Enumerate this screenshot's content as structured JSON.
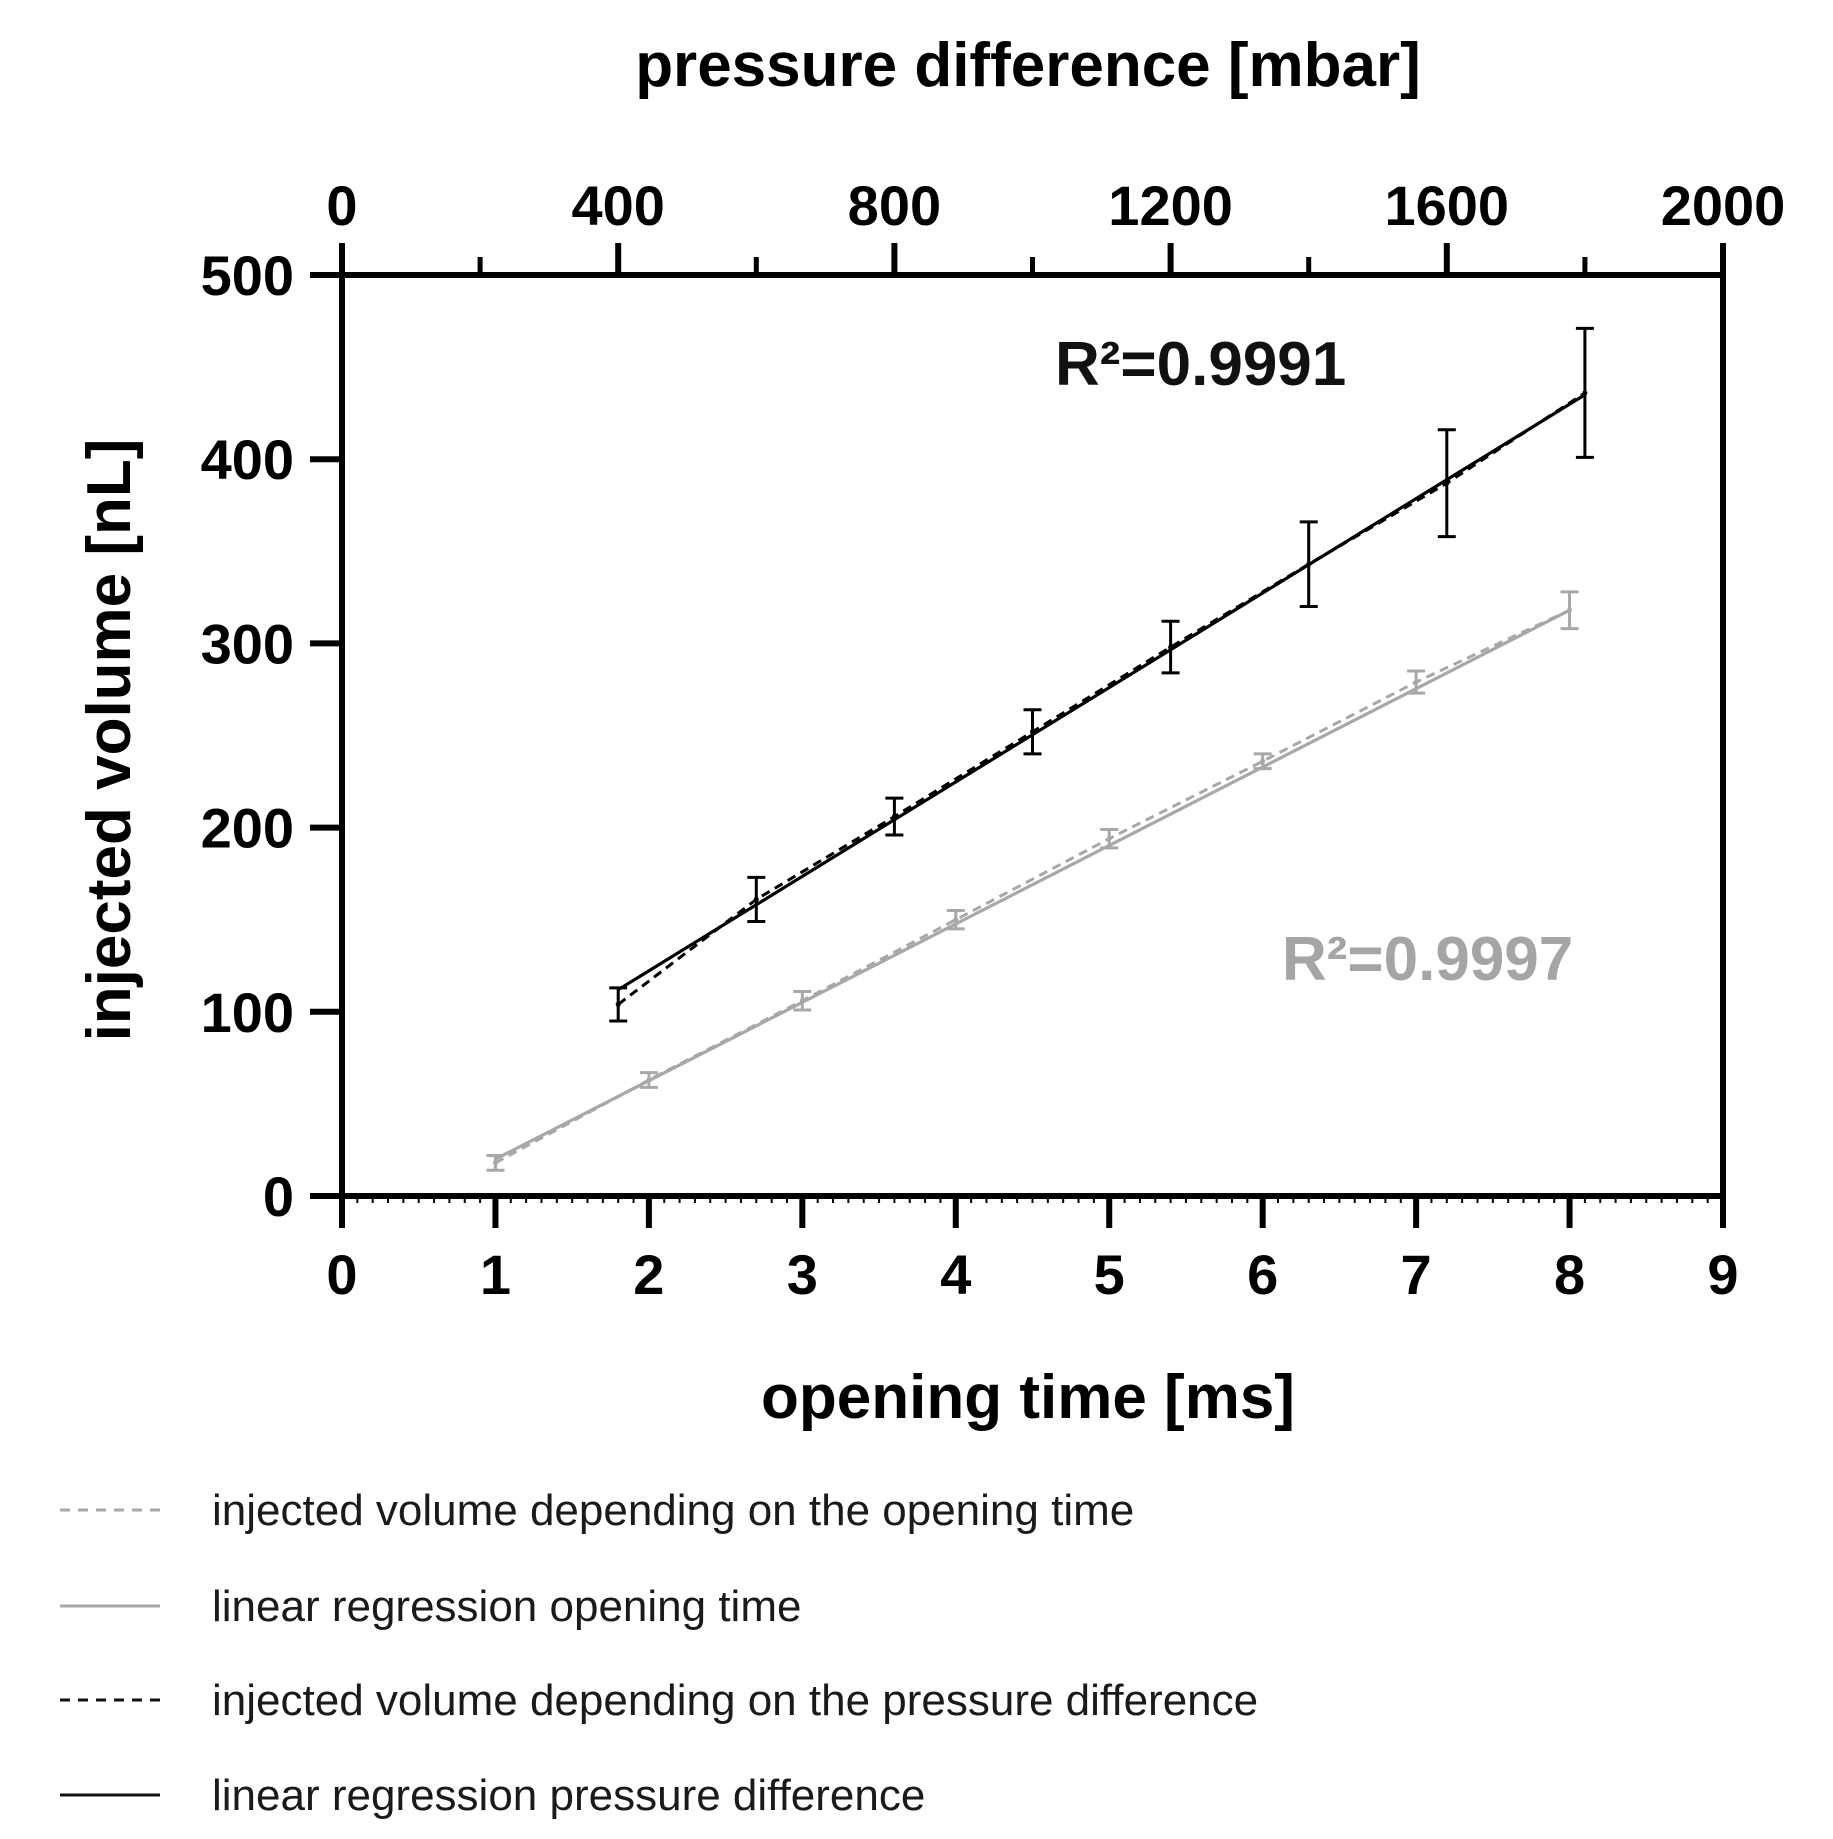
{
  "chart_data": {
    "type": "scatter",
    "title": "",
    "xlabel": "opening time [ms]",
    "x2label": "pressure difference [mbar]",
    "ylabel": "injected volume [nL]",
    "xlim": [
      0,
      9
    ],
    "x2lim": [
      0,
      2000
    ],
    "ylim": [
      0,
      500
    ],
    "x_ticks": [
      "0",
      "1",
      "2",
      "3",
      "4",
      "5",
      "6",
      "7",
      "8",
      "9"
    ],
    "x2_ticks": [
      "0",
      "400",
      "800",
      "1200",
      "1600",
      "2000"
    ],
    "y_ticks": [
      "0",
      "100",
      "200",
      "300",
      "400",
      "500"
    ],
    "series": [
      {
        "name": "injected volume depending on the opening time",
        "axis": "bottom",
        "color": "#a8a8a8",
        "style": "dashed",
        "x": [
          1,
          2,
          3,
          4,
          5,
          6,
          7,
          8
        ],
        "y": [
          18,
          63,
          106,
          150,
          194,
          236,
          279,
          318
        ],
        "err": [
          4,
          4,
          5,
          5,
          5,
          4,
          6,
          10
        ]
      },
      {
        "name": "linear regression opening time",
        "axis": "bottom",
        "color": "#a8a8a8",
        "style": "solid",
        "x": [
          1,
          8
        ],
        "y": [
          20,
          318
        ],
        "r2_label": "R²=0.9997"
      },
      {
        "name": "injected volume depending on the pressure difference",
        "axis": "top",
        "color": "#000000",
        "style": "dashed",
        "x": [
          400,
          600,
          800,
          1000,
          1200,
          1400,
          1600,
          1800
        ],
        "y": [
          104,
          161,
          206,
          252,
          298,
          343,
          387,
          436
        ],
        "err": [
          9,
          12,
          10,
          12,
          14,
          23,
          29,
          35
        ]
      },
      {
        "name": "linear regression pressure difference",
        "axis": "top",
        "color": "#000000",
        "style": "solid",
        "x": [
          400,
          1800
        ],
        "y": [
          112,
          435
        ],
        "r2_label": "R²=0.9991"
      }
    ],
    "legend_position": "bottom"
  }
}
